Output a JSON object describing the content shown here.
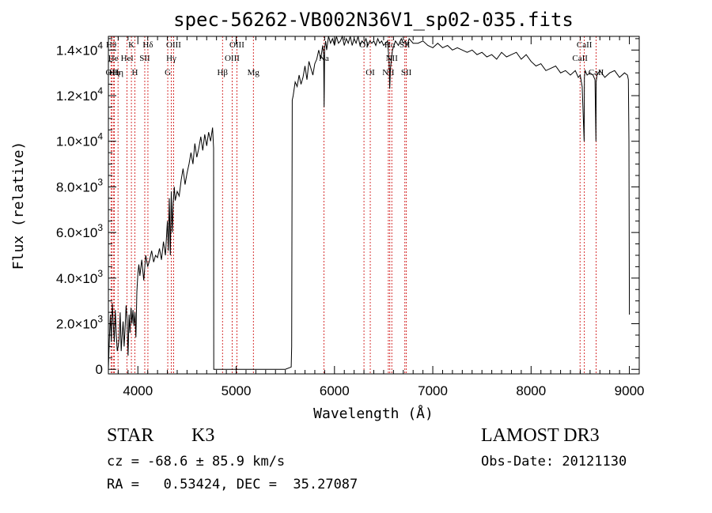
{
  "chart_data": {
    "type": "line",
    "title": "spec-56262-VB002N36V1_sp02-035.fits",
    "xlabel": "Wavelength (Å)",
    "ylabel": "Flux (relative)",
    "xlim": [
      3700,
      9100
    ],
    "ylim": [
      -200,
      14600
    ],
    "x_ticks": [
      {
        "value": 4000,
        "label": "4000"
      },
      {
        "value": 5000,
        "label": "5000"
      },
      {
        "value": 6000,
        "label": "6000"
      },
      {
        "value": 7000,
        "label": "7000"
      },
      {
        "value": 8000,
        "label": "8000"
      },
      {
        "value": 9000,
        "label": "9000"
      }
    ],
    "y_ticks": [
      {
        "value": 0,
        "label": "0",
        "base": "0",
        "exp": ""
      },
      {
        "value": 2000,
        "label": "2.0×10³",
        "base": "2.0×10",
        "exp": "3"
      },
      {
        "value": 4000,
        "label": "4.0×10³",
        "base": "4.0×10",
        "exp": "3"
      },
      {
        "value": 6000,
        "label": "6.0×10³",
        "base": "6.0×10",
        "exp": "3"
      },
      {
        "value": 8000,
        "label": "8.0×10³",
        "base": "8.0×10",
        "exp": "3"
      },
      {
        "value": 10000,
        "label": "1.0×10⁴",
        "base": "1.0×10",
        "exp": "4"
      },
      {
        "value": 12000,
        "label": "1.2×10⁴",
        "base": "1.2×10",
        "exp": "4"
      },
      {
        "value": 14000,
        "label": "1.4×10⁴",
        "base": "1.4×10",
        "exp": "4"
      }
    ],
    "series": [
      {
        "color": "#000000",
        "x": [
          3700,
          3710,
          3720,
          3730,
          3740,
          3750,
          3760,
          3770,
          3780,
          3790,
          3800,
          3810,
          3820,
          3830,
          3840,
          3850,
          3860,
          3870,
          3880,
          3890,
          3900,
          3910,
          3920,
          3930,
          3940,
          3950,
          3960,
          3970,
          3980,
          3990,
          4000,
          4010,
          4020,
          4040,
          4060,
          4080,
          4100,
          4120,
          4140,
          4160,
          4180,
          4200,
          4220,
          4240,
          4260,
          4280,
          4300,
          4310,
          4320,
          4330,
          4340,
          4350,
          4360,
          4370,
          4380,
          4400,
          4420,
          4440,
          4460,
          4480,
          4500,
          4520,
          4540,
          4560,
          4580,
          4600,
          4620,
          4640,
          4660,
          4680,
          4700,
          4720,
          4740,
          4760,
          4770,
          4772,
          5500,
          5560,
          5565,
          5570,
          5580,
          5600,
          5620,
          5640,
          5660,
          5680,
          5700,
          5720,
          5740,
          5760,
          5780,
          5800,
          5820,
          5840,
          5860,
          5880,
          5890,
          5895,
          5900,
          5910,
          5920,
          5940,
          5960,
          5980,
          6000,
          6020,
          6040,
          6060,
          6080,
          6100,
          6120,
          6140,
          6160,
          6180,
          6200,
          6220,
          6240,
          6260,
          6280,
          6300,
          6320,
          6340,
          6360,
          6380,
          6400,
          6420,
          6440,
          6460,
          6480,
          6500,
          6520,
          6540,
          6555,
          6562,
          6570,
          6590,
          6620,
          6650,
          6680,
          6700,
          6720,
          6740,
          6760,
          6800,
          6850,
          6900,
          6950,
          7000,
          7050,
          7100,
          7150,
          7200,
          7250,
          7300,
          7350,
          7400,
          7450,
          7500,
          7550,
          7600,
          7650,
          7700,
          7750,
          7800,
          7850,
          7900,
          7950,
          8000,
          8050,
          8100,
          8150,
          8200,
          8250,
          8300,
          8350,
          8400,
          8450,
          8480,
          8500,
          8520,
          8540,
          8542,
          8550,
          8570,
          8600,
          8630,
          8650,
          8660,
          8662,
          8670,
          8700,
          8750,
          8800,
          8850,
          8900,
          8950,
          8980,
          8990,
          8995,
          9000
        ],
        "y": [
          0,
          1300,
          2400,
          1200,
          2900,
          2000,
          1200,
          2600,
          1600,
          800,
          1000,
          1400,
          2500,
          800,
          1500,
          2100,
          1000,
          1800,
          2800,
          2200,
          600,
          2400,
          1600,
          2700,
          2000,
          2600,
          1900,
          2500,
          1400,
          3400,
          4200,
          4600,
          4100,
          4800,
          3900,
          5000,
          4500,
          4800,
          5200,
          4700,
          5000,
          4900,
          5300,
          4800,
          5600,
          5000,
          6500,
          5200,
          7500,
          5000,
          7800,
          6000,
          7300,
          8000,
          7400,
          7800,
          7600,
          8300,
          8800,
          8100,
          8600,
          9000,
          9500,
          9000,
          9900,
          9300,
          9700,
          10200,
          9600,
          10300,
          9800,
          10400,
          10000,
          10600,
          9700,
          0,
          0,
          100,
          1000,
          11800,
          12000,
          12600,
          12400,
          12900,
          12500,
          12800,
          13300,
          12700,
          13500,
          13200,
          12900,
          13400,
          13600,
          14000,
          13600,
          14200,
          13800,
          11500,
          14100,
          14400,
          14000,
          14700,
          14300,
          14500,
          14200,
          14600,
          14300,
          14400,
          14700,
          14200,
          14500,
          14300,
          14600,
          14200,
          14500,
          14300,
          14600,
          14200,
          14400,
          14300,
          14500,
          14200,
          14400,
          14300,
          14400,
          14200,
          14500,
          14300,
          14400,
          14200,
          14300,
          14400,
          13500,
          12300,
          13200,
          14000,
          14400,
          14200,
          14500,
          14300,
          14400,
          14200,
          14500,
          14300,
          14300,
          14400,
          14200,
          14100,
          14300,
          14100,
          14200,
          14000,
          14100,
          14000,
          13900,
          14000,
          13800,
          13900,
          13700,
          13800,
          13600,
          13900,
          13700,
          13800,
          13900,
          13600,
          13800,
          13500,
          13300,
          13400,
          13100,
          13200,
          13300,
          13000,
          13100,
          12900,
          13100,
          12800,
          12900,
          12400,
          10000,
          12800,
          13100,
          12900,
          13000,
          12900,
          12700,
          10000,
          12600,
          12900,
          13100,
          12800,
          13000,
          13100,
          12800,
          13000,
          12900,
          12700,
          10000,
          2400
        ]
      }
    ],
    "line_annotations": [
      {
        "x": 3729,
        "label": "Hθ",
        "row": 0
      },
      {
        "x": 3733,
        "label": "OII",
        "row": 2
      },
      {
        "x": 3750,
        "label": "He",
        "row": 1
      },
      {
        "x": 3760,
        "label": "Hη",
        "row": 2
      },
      {
        "x": 3798,
        "label": "Hη",
        "row": 2
      },
      {
        "x": 3890,
        "label": "Hel",
        "row": 1
      },
      {
        "x": 3934,
        "label": "K",
        "row": 0
      },
      {
        "x": 3969,
        "label": "H",
        "row": 2
      },
      {
        "x": 4070,
        "label": "SII",
        "row": 1
      },
      {
        "x": 4102,
        "label": "Hδ",
        "row": 0
      },
      {
        "x": 4304,
        "label": "G",
        "row": 2
      },
      {
        "x": 4340,
        "label": "Hγ",
        "row": 1
      },
      {
        "x": 4364,
        "label": "OIII",
        "row": 0
      },
      {
        "x": 4861,
        "label": "Hβ",
        "row": 2
      },
      {
        "x": 4959,
        "label": "OIII",
        "row": 1
      },
      {
        "x": 5007,
        "label": "OIII",
        "row": 0
      },
      {
        "x": 5175,
        "label": "Mg",
        "row": 2
      },
      {
        "x": 5893,
        "label": "Na",
        "row": 1
      },
      {
        "x": 6300,
        "label": "OI",
        "row": 0
      },
      {
        "x": 6364,
        "label": "OI",
        "row": 2
      },
      {
        "x": 6548,
        "label": "NII",
        "row": 2
      },
      {
        "x": 6563,
        "label": "Hα",
        "row": 0
      },
      {
        "x": 6583,
        "label": "NII",
        "row": 1
      },
      {
        "x": 6716,
        "label": "SII",
        "row": 0
      },
      {
        "x": 6731,
        "label": "SII",
        "row": 2
      },
      {
        "x": 8498,
        "label": "CaII",
        "row": 1
      },
      {
        "x": 8542,
        "label": "CaII",
        "row": 0
      },
      {
        "x": 8662,
        "label": "CaII",
        "row": 2
      }
    ],
    "grid": false,
    "legend": "none"
  },
  "info": {
    "star_class": "STAR",
    "subclass": "K3",
    "survey": "LAMOST DR3",
    "cz": "cz = -68.6 ± 85.9 km/s",
    "obs_date": "Obs-Date: 20121130",
    "coords": "RA =   0.53424, DEC =  35.27087"
  }
}
